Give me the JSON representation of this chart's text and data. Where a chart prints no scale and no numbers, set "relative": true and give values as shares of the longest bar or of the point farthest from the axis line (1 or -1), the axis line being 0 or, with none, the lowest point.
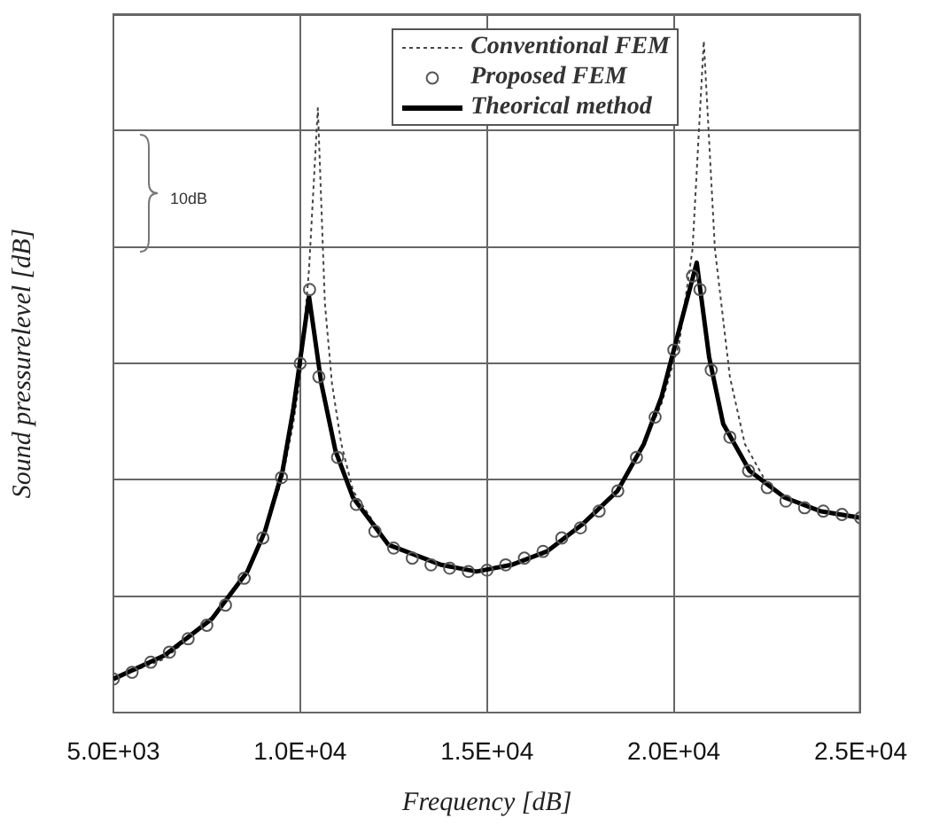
{
  "chart_data": {
    "type": "line",
    "relative": true,
    "xlabel": "Frequency [dB]",
    "ylabel": "Sound pressurelevel [dB]",
    "annotations": [
      "10dB"
    ],
    "xlim": [
      5000,
      25000
    ],
    "xticks": [
      {
        "value": 5000,
        "label": "5.0E+03"
      },
      {
        "value": 10000,
        "label": "1.0E+04"
      },
      {
        "value": 15000,
        "label": "1.5E+04"
      },
      {
        "value": 20000,
        "label": "2.0E+04"
      },
      {
        "value": 25000,
        "label": "2.5E+04"
      }
    ],
    "grid": true,
    "legend": "top right",
    "series": [
      {
        "name": "Conventional FEM",
        "type": "line",
        "line_style": "dotted",
        "marker": "none",
        "color": "#444444",
        "x": [
          5000,
          6368,
          7642,
          8585,
          9057,
          9528,
          9811,
          10000,
          10236,
          10472,
          10660,
          10850,
          11100,
          11415,
          12358,
          13774,
          14717,
          15660,
          16604,
          17547,
          18491,
          19198,
          19670,
          20142,
          20500,
          20802,
          21100,
          21500,
          21900,
          22500,
          22972,
          23915,
          25000
        ],
        "values": [
          0.05,
          0.08,
          0.14,
          0.21,
          0.27,
          0.35,
          0.43,
          0.5,
          0.66,
          0.9,
          0.61,
          0.49,
          0.4,
          0.33,
          0.25,
          0.22,
          0.21,
          0.22,
          0.24,
          0.28,
          0.33,
          0.4,
          0.46,
          0.55,
          0.69,
          1,
          0.69,
          0.5,
          0.4,
          0.34,
          0.32,
          0.3,
          0.29
        ]
      },
      {
        "name": "Proposed FEM",
        "type": "scatter",
        "marker": "circle",
        "color": "#555555",
        "x": [
          5000,
          5500,
          6000,
          6500,
          7000,
          7500,
          8000,
          8500,
          9000,
          9500,
          10000,
          10250,
          10500,
          11000,
          11500,
          12000,
          12500,
          13000,
          13500,
          14000,
          14500,
          15000,
          15500,
          16000,
          16500,
          17000,
          17500,
          18000,
          18500,
          19000,
          19500,
          20000,
          20500,
          20700,
          21000,
          21500,
          22000,
          22500,
          23000,
          23500,
          24000,
          24500,
          25000
        ],
        "values": [
          0.05,
          0.06,
          0.075,
          0.09,
          0.11,
          0.13,
          0.16,
          0.2,
          0.26,
          0.35,
          0.52,
          0.63,
          0.5,
          0.38,
          0.31,
          0.27,
          0.245,
          0.23,
          0.22,
          0.215,
          0.21,
          0.212,
          0.22,
          0.23,
          0.24,
          0.26,
          0.275,
          0.3,
          0.33,
          0.38,
          0.44,
          0.54,
          0.65,
          0.63,
          0.51,
          0.41,
          0.36,
          0.335,
          0.315,
          0.305,
          0.3,
          0.295,
          0.29
        ]
      },
      {
        "name": "Theorical method",
        "type": "line",
        "line_style": "solid",
        "marker": "none",
        "color": "#000000",
        "x": [
          5000,
          6368,
          7642,
          8585,
          9057,
          9528,
          9811,
          10236,
          10566,
          10943,
          11415,
          12358,
          13774,
          14717,
          15660,
          16604,
          17547,
          18491,
          19198,
          19670,
          20142,
          20613,
          20943,
          21321,
          22028,
          22972,
          23915,
          25000
        ],
        "values": [
          0.05,
          0.085,
          0.14,
          0.21,
          0.27,
          0.36,
          0.45,
          0.62,
          0.49,
          0.39,
          0.32,
          0.25,
          0.22,
          0.21,
          0.22,
          0.24,
          0.28,
          0.33,
          0.4,
          0.47,
          0.57,
          0.67,
          0.53,
          0.43,
          0.36,
          0.32,
          0.3,
          0.29
        ]
      }
    ]
  }
}
